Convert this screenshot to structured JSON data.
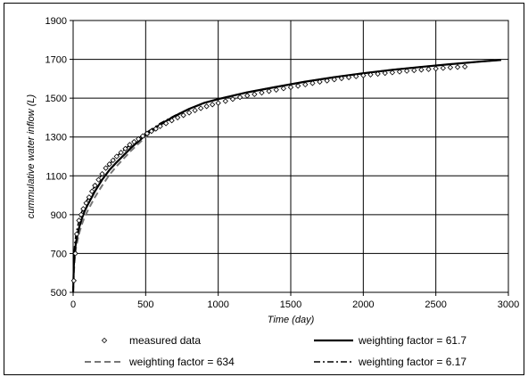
{
  "chart_data": {
    "type": "line",
    "title": "",
    "xlabel": "Time (day)",
    "ylabel": "cummulative water inflow (L)",
    "xlim": [
      0,
      3000
    ],
    "ylim": [
      500,
      1900
    ],
    "xticks": [
      0,
      500,
      1000,
      1500,
      2000,
      2500,
      3000
    ],
    "yticks": [
      500,
      700,
      900,
      1100,
      1300,
      1500,
      1700,
      1900
    ],
    "xtick_labels": [
      "0",
      "500",
      "1000",
      "1500",
      "2000",
      "2500",
      "3000"
    ],
    "ytick_labels": [
      "500",
      "700",
      "900",
      "1100",
      "1300",
      "1500",
      "1700",
      "1900"
    ],
    "grid": true,
    "legend_position": "bottom",
    "series": [
      {
        "name": "measured data",
        "style": "diamond-markers",
        "color": "#000000",
        "x": [
          5,
          15,
          25,
          40,
          55,
          70,
          90,
          110,
          130,
          150,
          175,
          200,
          225,
          250,
          275,
          300,
          330,
          360,
          390,
          420,
          450,
          480,
          510,
          540,
          570,
          600,
          640,
          680,
          720,
          760,
          800,
          840,
          880,
          920,
          960,
          1000,
          1050,
          1100,
          1150,
          1200,
          1250,
          1300,
          1350,
          1400,
          1450,
          1500,
          1550,
          1600,
          1650,
          1700,
          1750,
          1800,
          1850,
          1900,
          1950,
          2000,
          2050,
          2100,
          2150,
          2200,
          2250,
          2300,
          2350,
          2400,
          2450,
          2500,
          2550,
          2600,
          2650,
          2700
        ],
        "y": [
          560,
          700,
          800,
          870,
          900,
          930,
          960,
          990,
          1020,
          1050,
          1080,
          1110,
          1140,
          1160,
          1180,
          1200,
          1220,
          1240,
          1260,
          1275,
          1290,
          1305,
          1318,
          1330,
          1342,
          1355,
          1370,
          1385,
          1400,
          1412,
          1425,
          1437,
          1448,
          1458,
          1467,
          1475,
          1485,
          1495,
          1505,
          1513,
          1520,
          1528,
          1536,
          1543,
          1550,
          1556,
          1563,
          1570,
          1577,
          1584,
          1590,
          1596,
          1602,
          1607,
          1612,
          1617,
          1621,
          1625,
          1629,
          1632,
          1636,
          1640,
          1643,
          1646,
          1649,
          1652,
          1655,
          1658,
          1660,
          1662
        ]
      },
      {
        "name": "weighting factor = 61.7",
        "style": "solid",
        "color": "#000000",
        "x": [
          0,
          5,
          10,
          20,
          40,
          60,
          80,
          100,
          150,
          200,
          250,
          300,
          400,
          500,
          600,
          700,
          800,
          900,
          1000,
          1200,
          1400,
          1600,
          1800,
          2000,
          2200,
          2400,
          2600,
          2800,
          2950
        ],
        "y": [
          500,
          640,
          700,
          760,
          830,
          880,
          920,
          950,
          1020,
          1080,
          1130,
          1170,
          1245,
          1310,
          1365,
          1408,
          1445,
          1475,
          1495,
          1530,
          1558,
          1585,
          1608,
          1628,
          1646,
          1661,
          1675,
          1688,
          1697
        ]
      },
      {
        "name": "weighting factor = 634",
        "style": "dashed",
        "color": "#777777",
        "x": [
          0,
          5,
          10,
          20,
          40,
          60,
          80,
          100,
          150,
          200,
          250,
          300,
          400,
          500,
          600,
          700,
          800,
          900,
          1000,
          1200,
          1400,
          1600,
          1800,
          2000,
          2200,
          2400,
          2600,
          2800,
          2950
        ],
        "y": [
          500,
          600,
          660,
          730,
          800,
          850,
          890,
          920,
          990,
          1050,
          1105,
          1150,
          1230,
          1300,
          1360,
          1405,
          1443,
          1474,
          1495,
          1530,
          1558,
          1585,
          1608,
          1628,
          1646,
          1661,
          1675,
          1688,
          1697
        ]
      },
      {
        "name": "weighting factor = 6.17",
        "style": "dash-dot",
        "color": "#000000",
        "x": [
          0,
          5,
          10,
          20,
          40,
          60,
          80,
          100,
          150,
          200,
          250,
          300,
          400,
          500,
          600,
          700,
          800,
          900,
          1000,
          1200,
          1400,
          1600,
          1800,
          2000,
          2200,
          2400,
          2600,
          2800,
          2950
        ],
        "y": [
          500,
          680,
          740,
          800,
          870,
          915,
          950,
          980,
          1050,
          1110,
          1160,
          1200,
          1265,
          1320,
          1370,
          1410,
          1445,
          1475,
          1495,
          1530,
          1558,
          1585,
          1608,
          1628,
          1646,
          1661,
          1675,
          1688,
          1697
        ]
      }
    ]
  }
}
